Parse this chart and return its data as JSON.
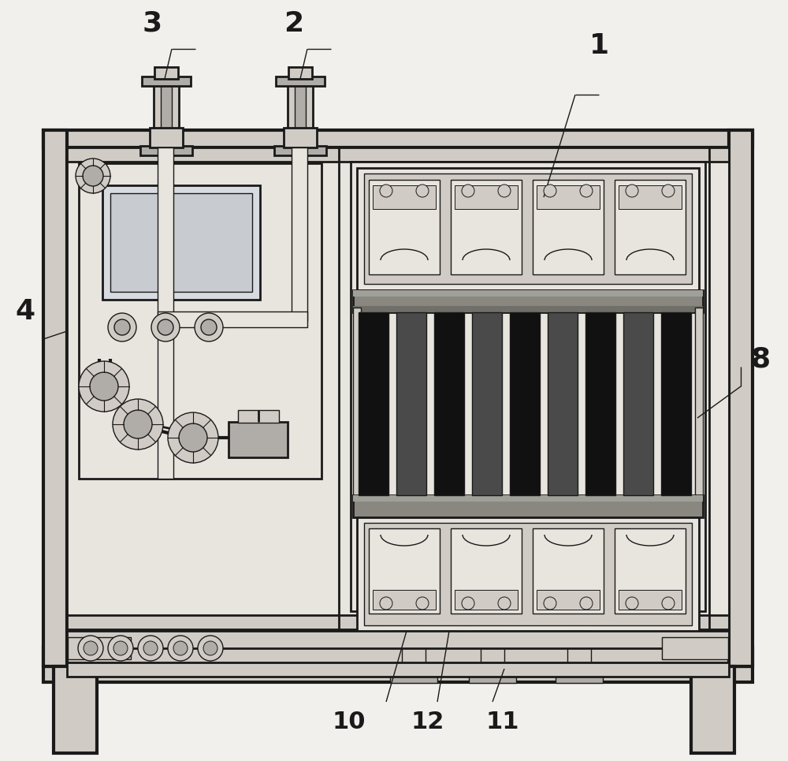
{
  "bg_color": "#f2f0ed",
  "line_color": "#1a1a1a",
  "fill_light": "#e8e4de",
  "fill_mid": "#d0ccc5",
  "fill_dark": "#b0ada8",
  "fill_darker": "#8a8780",
  "fill_darkest": "#2a2a2a",
  "fill_black": "#111111",
  "figsize": [
    10.0,
    9.65
  ],
  "dpi": 100
}
